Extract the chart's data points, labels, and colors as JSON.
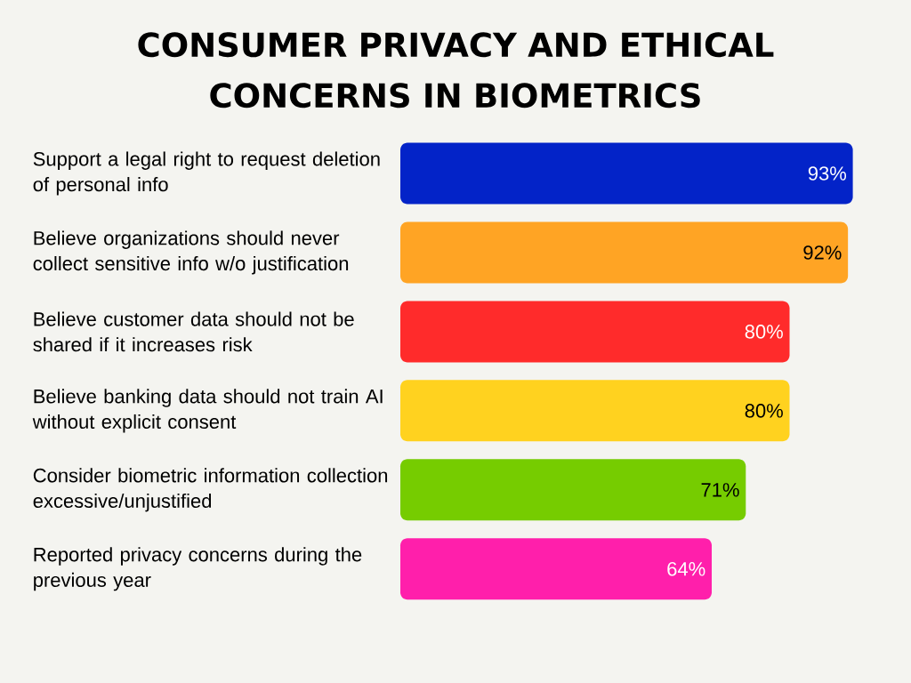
{
  "chart_data": {
    "type": "bar",
    "orientation": "horizontal",
    "title": "CONSUMER PRIVACY AND ETHICAL CONCERNS IN BIOMETRICS",
    "categories": [
      "Support a legal right to request deletion of personal info",
      "Believe organizations should never collect sensitive info w/o justification",
      "Believe customer data should not be shared if it increases risk",
      "Believe banking data should not train AI without explicit consent",
      "Consider biometric information collection excessive/unjustified",
      "Reported privacy concerns during the previous year"
    ],
    "values": [
      93,
      92,
      80,
      80,
      71,
      64
    ],
    "value_labels": [
      "93%",
      "92%",
      "80%",
      "80%",
      "71%",
      "64%"
    ],
    "colors": [
      "#0323c8",
      "#ffa424",
      "#ff2b2b",
      "#ffd21f",
      "#76cc00",
      "#ff1fab"
    ]
  }
}
